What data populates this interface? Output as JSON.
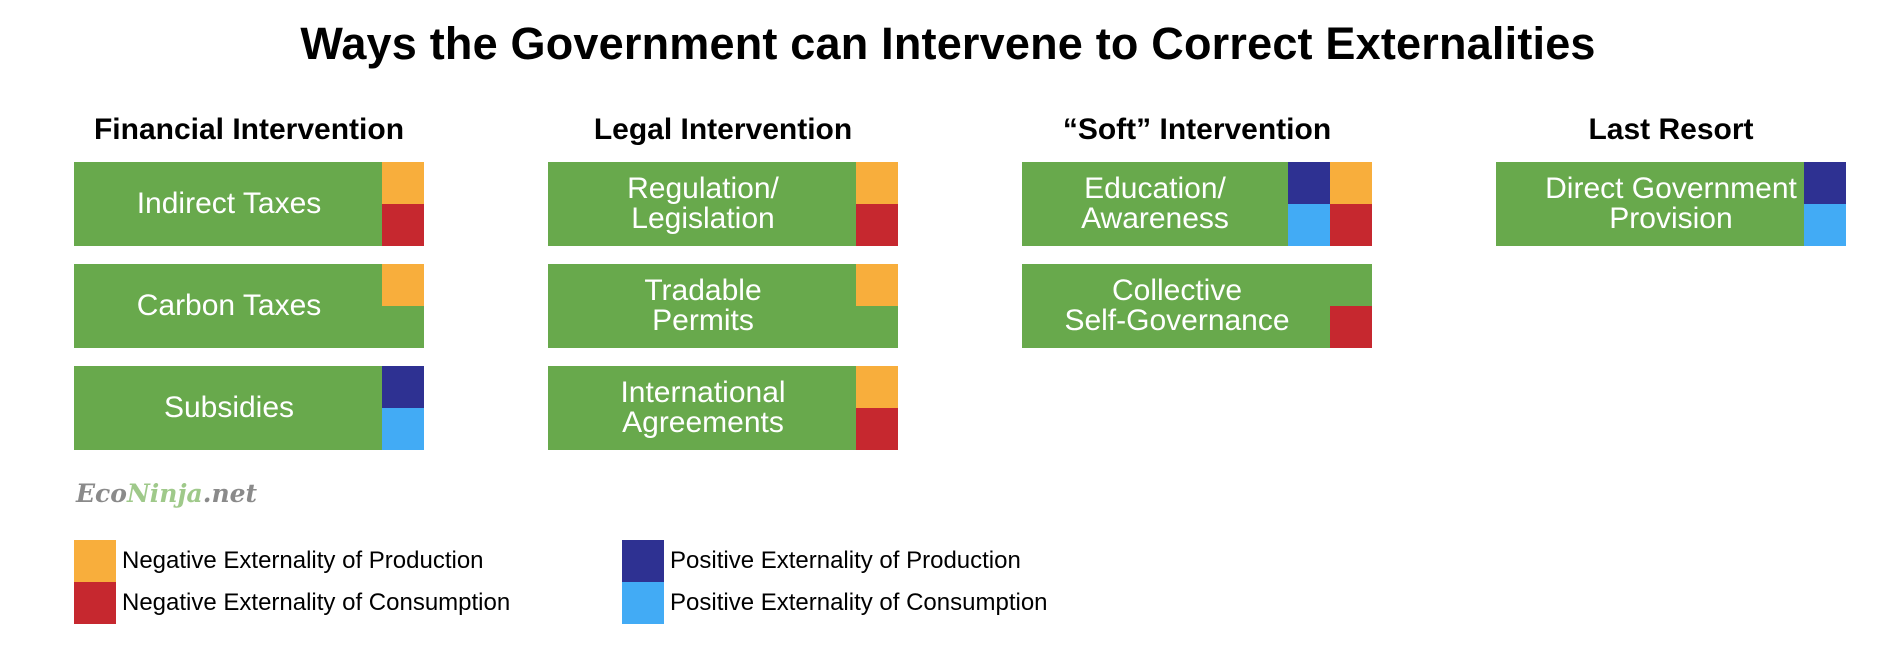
{
  "title": "Ways the Government can Intervene to Correct Externalities",
  "colors": {
    "green": "#68a94c",
    "negative_production": "#f8ae3c",
    "negative_consumption": "#c6282f",
    "positive_production": "#2e3192",
    "positive_consumption": "#42abf5"
  },
  "columns": [
    {
      "heading": "Financial Intervention",
      "boxes": [
        {
          "label": "Indirect Taxes",
          "markers": [
            "negative_production",
            "negative_consumption"
          ]
        },
        {
          "label": "Carbon Taxes",
          "markers": [
            "negative_production"
          ]
        },
        {
          "label": "Subsidies",
          "markers": [
            "positive_production",
            "positive_consumption"
          ]
        }
      ]
    },
    {
      "heading": "Legal Intervention",
      "boxes": [
        {
          "label": "Regulation/\nLegislation",
          "markers": [
            "negative_production",
            "negative_consumption"
          ]
        },
        {
          "label": "Tradable\nPermits",
          "markers": [
            "negative_production"
          ]
        },
        {
          "label": "International\nAgreements",
          "markers": [
            "negative_production",
            "negative_consumption"
          ]
        }
      ]
    },
    {
      "heading": "“Soft” Intervention",
      "boxes": [
        {
          "label": "Education/\nAwareness",
          "markers": [
            "negative_production",
            "negative_consumption",
            "positive_production",
            "positive_consumption"
          ]
        },
        {
          "label": "Collective\nSelf-Governance",
          "markers": [
            "negative_consumption"
          ]
        }
      ]
    },
    {
      "heading": "Last Resort",
      "boxes": [
        {
          "label": "Direct Government\nProvision",
          "markers": [
            "positive_production",
            "positive_consumption"
          ]
        }
      ]
    }
  ],
  "watermark": {
    "part1": "Eco",
    "part2": "Ninja",
    "part3": ".net"
  },
  "legend": [
    {
      "key": "negative_production",
      "label": "Negative Externality of Production"
    },
    {
      "key": "negative_consumption",
      "label": "Negative Externality of Consumption"
    },
    {
      "key": "positive_production",
      "label": "Positive Externality of Production"
    },
    {
      "key": "positive_consumption",
      "label": "Positive Externality of Consumption"
    }
  ]
}
